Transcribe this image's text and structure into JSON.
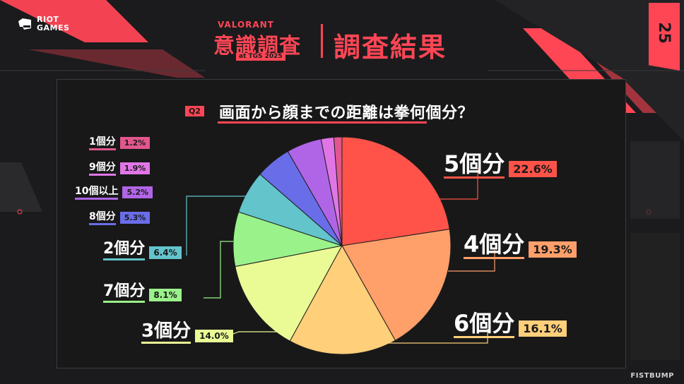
{
  "branding": {
    "publisher_logo_line1": "RIOT",
    "publisher_logo_line2": "GAMES",
    "event_title_small": "VALORANT",
    "event_title_main": "意識調査",
    "event_title_sub": "at TGS 2025",
    "result_title": "調査結果",
    "corner_badge": "25",
    "bottom_right_brand": "FISTBUMP",
    "accent_color": "#ff4655"
  },
  "question": {
    "tag": "Q2",
    "text": "画面から顔までの距離は拳何個分？"
  },
  "chart_data": {
    "type": "pie",
    "title": "画面から顔までの距離は拳何個分？",
    "start": "12 o'clock",
    "direction": "clockwise",
    "slices": [
      {
        "label": "5個分",
        "value": 22.6,
        "value_label": "22.6%",
        "color": "#ff5349"
      },
      {
        "label": "4個分",
        "value": 19.3,
        "value_label": "19.3%",
        "color": "#ff9f6a"
      },
      {
        "label": "6個分",
        "value": 16.1,
        "value_label": "16.1%",
        "color": "#ffcf7a"
      },
      {
        "label": "3個分",
        "value": 14.0,
        "value_label": "14.0%",
        "color": "#eafa95"
      },
      {
        "label": "7個分",
        "value": 8.1,
        "value_label": "8.1%",
        "color": "#9af28a"
      },
      {
        "label": "2個分",
        "value": 6.4,
        "value_label": "6.4%",
        "color": "#63c4cc"
      },
      {
        "label": "8個分",
        "value": 5.3,
        "value_label": "5.3%",
        "color": "#6a6de8"
      },
      {
        "label": "10個以上",
        "value": 5.2,
        "value_label": "5.2%",
        "color": "#b065e6"
      },
      {
        "label": "9個分",
        "value": 1.9,
        "value_label": "1.9%",
        "color": "#e076e6"
      },
      {
        "label": "1個分",
        "value": 1.2,
        "value_label": "1.2%",
        "color": "#e2568e"
      }
    ]
  }
}
